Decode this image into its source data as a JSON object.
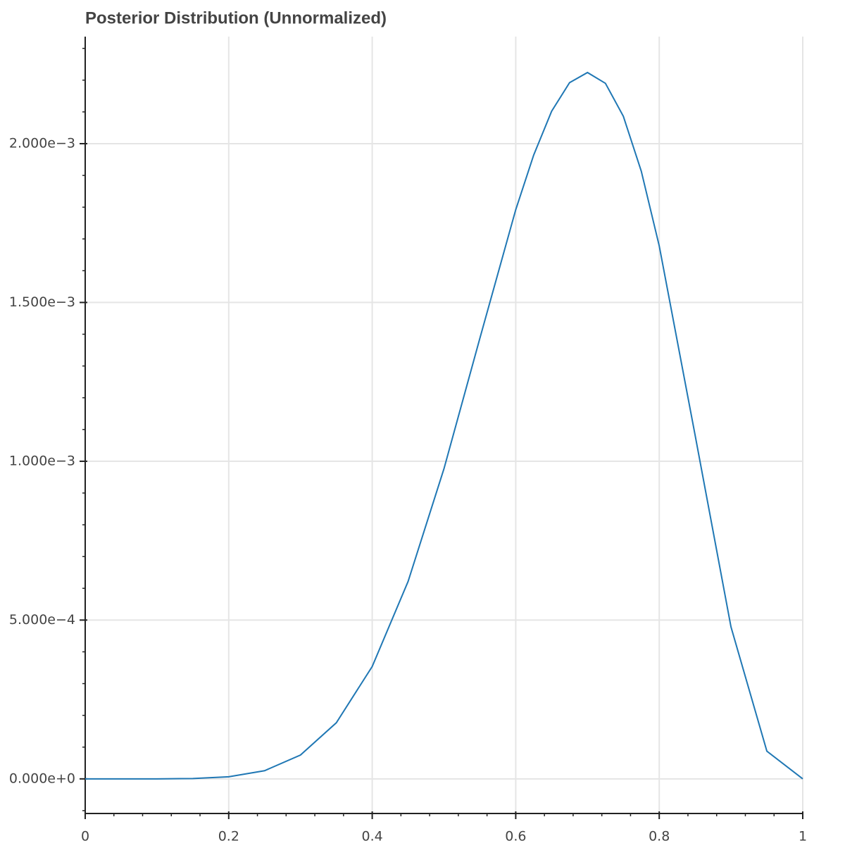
{
  "chart_data": {
    "type": "line",
    "title": "Posterior Distribution (Unnormalized)",
    "x": [
      0,
      0.05,
      0.1,
      0.15,
      0.2,
      0.25,
      0.3,
      0.35,
      0.4,
      0.45,
      0.5,
      0.55,
      0.6,
      0.625,
      0.65,
      0.675,
      0.7,
      0.725,
      0.75,
      0.775,
      0.8,
      0.85,
      0.9,
      0.95,
      1
    ],
    "series": [
      {
        "color": "#1f77b4",
        "values": [
          0,
          6.7e-10,
          7.29e-08,
          1.049e-06,
          6.55e-06,
          2.575e-05,
          7.5e-05,
          0.0001767,
          0.0003539,
          0.0006217,
          0.0009766,
          0.001387,
          0.001792,
          0.001964,
          0.002102,
          0.002192,
          0.002224,
          0.00219,
          0.002086,
          0.001913,
          0.001678,
          0.001082,
          0.0004783,
          8.73e-05,
          0
        ]
      }
    ],
    "xlim": [
      0,
      1
    ],
    "xticks": [
      0,
      0.2,
      0.4,
      0.6,
      0.8,
      1
    ],
    "ylim": [
      -0.000109,
      0.002337
    ],
    "yticks": [
      {
        "value": 0,
        "label": "0.000e+0"
      },
      {
        "value": 0.0005,
        "label": "5.000e−4"
      },
      {
        "value": 0.001,
        "label": "1.000e−3"
      },
      {
        "value": 0.0015,
        "label": "1.500e−3"
      },
      {
        "value": 0.002,
        "label": "2.000e−3"
      }
    ],
    "grid": true
  }
}
